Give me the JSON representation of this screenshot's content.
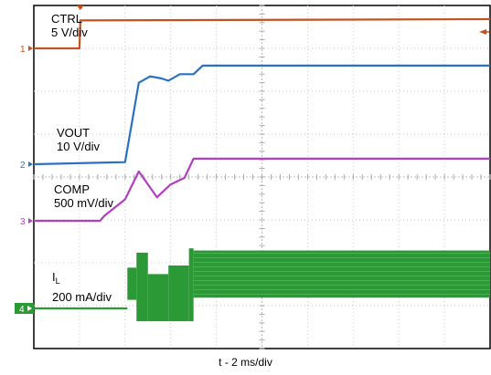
{
  "chart_data": {
    "type": "line",
    "x_axis_label": "t - 2 ms/div",
    "grid": true,
    "divisions": {
      "x": 10,
      "y": 8
    },
    "channels": [
      {
        "id": "1",
        "name": "CTRL",
        "scale": "5 V/div",
        "color": "#c0531f",
        "points": [
          [
            0,
            0
          ],
          [
            1.0,
            0
          ],
          [
            1.02,
            0.65
          ],
          [
            10,
            0.68
          ]
        ]
      },
      {
        "id": "2",
        "name": "VOUT",
        "scale": "10 V/div",
        "color": "#2a72c0",
        "points": [
          [
            0,
            0
          ],
          [
            2.0,
            0.05
          ],
          [
            2.3,
            1.9
          ],
          [
            2.55,
            2.05
          ],
          [
            2.8,
            2.0
          ],
          [
            2.95,
            1.95
          ],
          [
            3.2,
            2.1
          ],
          [
            3.5,
            2.1
          ],
          [
            3.7,
            2.3
          ],
          [
            10,
            2.3
          ]
        ]
      },
      {
        "id": "3",
        "name": "COMP",
        "scale": "500 mV/div",
        "color": "#b23fbf",
        "points": [
          [
            0,
            0
          ],
          [
            1.45,
            0
          ],
          [
            1.55,
            0.12
          ],
          [
            2.0,
            0.5
          ],
          [
            2.3,
            1.15
          ],
          [
            2.5,
            0.85
          ],
          [
            2.7,
            0.55
          ],
          [
            3.0,
            0.85
          ],
          [
            3.3,
            1.0
          ],
          [
            3.5,
            1.45
          ],
          [
            10,
            1.45
          ]
        ]
      },
      {
        "id": "4",
        "name": "I",
        "name_subscript": "L",
        "scale": "200 mA/div",
        "color": "#2b9a36",
        "bands": [
          {
            "x": [
              0,
              2.05
            ],
            "lo": 0,
            "hi": 0
          },
          {
            "x": [
              2.05,
              2.25
            ],
            "lo": 0.2,
            "hi": 0.95
          },
          {
            "x": [
              2.25,
              2.5
            ],
            "lo": -0.3,
            "hi": 1.3
          },
          {
            "x": [
              2.5,
              2.95
            ],
            "lo": -0.3,
            "hi": 0.8
          },
          {
            "x": [
              2.95,
              3.4
            ],
            "lo": -0.3,
            "hi": 1.0
          },
          {
            "x": [
              3.4,
              3.5
            ],
            "lo": -0.3,
            "hi": 1.4
          },
          {
            "x": [
              3.5,
              10
            ],
            "lo": 0.25,
            "hi": 1.35
          }
        ]
      }
    ]
  }
}
